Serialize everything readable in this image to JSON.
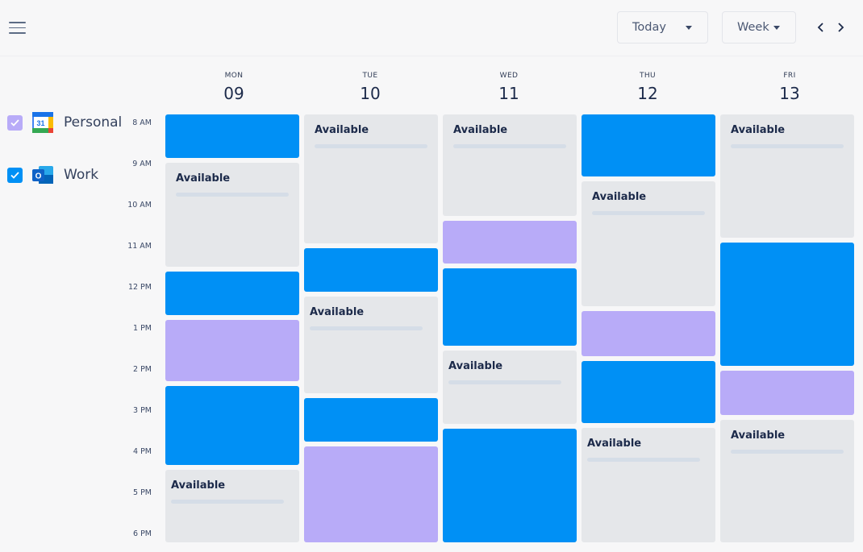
{
  "header": {
    "today_label": "Today",
    "view_label": "Week"
  },
  "days": [
    {
      "name": "MON",
      "num": "09"
    },
    {
      "name": "TUE",
      "num": "10"
    },
    {
      "name": "WED",
      "num": "11"
    },
    {
      "name": "THU",
      "num": "12"
    },
    {
      "name": "FRI",
      "num": "13"
    }
  ],
  "calendars": [
    {
      "label": "Personal",
      "checked": true,
      "color": "#b8abf8",
      "icon": "google-calendar-icon",
      "icon_text": "31"
    },
    {
      "label": "Work",
      "checked": true,
      "color": "#0090f5",
      "icon": "outlook-icon",
      "icon_text": "O"
    }
  ],
  "times": [
    "8 AM",
    "9 AM",
    "10 AM",
    "11 AM",
    "12 PM",
    "1 PM",
    "2 PM",
    "3 PM",
    "4 PM",
    "5 PM",
    "6 PM"
  ],
  "colors": {
    "available": "#e5e7ea",
    "work": "#0090f5",
    "personal": "#b8abf8"
  },
  "availability_label": "Available"
}
